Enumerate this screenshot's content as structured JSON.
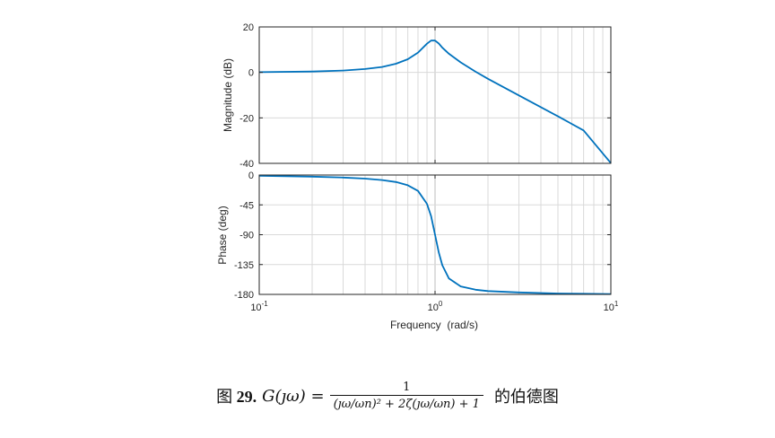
{
  "chart_data": [
    {
      "type": "line",
      "title": "",
      "xlabel": "",
      "ylabel": "Magnitude (dB)",
      "xscale": "log",
      "xlim": [
        0.1,
        10
      ],
      "ylim": [
        -40,
        20
      ],
      "yticks": [
        "20",
        "0",
        "-20",
        "-40"
      ],
      "grid": true,
      "series": [
        {
          "color": "#0072BD",
          "x": [
            0.1,
            0.2,
            0.3,
            0.4,
            0.5,
            0.6,
            0.7,
            0.8,
            0.9,
            0.95,
            1.0,
            1.05,
            1.1,
            1.2,
            1.4,
            1.7,
            2,
            3,
            5,
            7,
            10
          ],
          "y": [
            0.1,
            0.4,
            0.8,
            1.5,
            2.4,
            3.8,
            5.8,
            8.7,
            12.6,
            14,
            14,
            12.7,
            10.9,
            8.2,
            4.4,
            0.3,
            -2.8,
            -10.1,
            -19.3,
            -25.5,
            -39.9
          ]
        }
      ]
    },
    {
      "type": "line",
      "title": "",
      "xlabel": "Frequency  (rad/s)",
      "ylabel": "Phase (deg)",
      "xscale": "log",
      "xlim": [
        0.1,
        10
      ],
      "ylim": [
        -180,
        0
      ],
      "yticks": [
        "0",
        "-45",
        "-90",
        "-135",
        "-180"
      ],
      "xticks": [
        "10-1",
        "100",
        "101"
      ],
      "grid": true,
      "series": [
        {
          "color": "#0072BD",
          "x": [
            0.1,
            0.2,
            0.3,
            0.4,
            0.5,
            0.6,
            0.7,
            0.8,
            0.9,
            0.95,
            1.0,
            1.05,
            1.1,
            1.2,
            1.4,
            1.7,
            2,
            3,
            5,
            7,
            10
          ],
          "y": [
            -1.2,
            -2.4,
            -3.8,
            -5.4,
            -7.6,
            -10.6,
            -15.4,
            -24,
            -43.5,
            -62,
            -90,
            -117,
            -136,
            -156,
            -168,
            -173,
            -175,
            -177,
            -178.6,
            -179,
            -179.4
          ]
        }
      ]
    }
  ],
  "tick_labels": {
    "x": [
      {
        "base": "10",
        "exp": "-1"
      },
      {
        "base": "10",
        "exp": "0"
      },
      {
        "base": "10",
        "exp": "1"
      }
    ]
  },
  "caption": {
    "prefix_cn": "图",
    "number": "29.",
    "lhs": "G(ȷω) =",
    "numerator": "1",
    "denominator": "(ȷω/ωn)² + 2ζ(ȷω/ωn) + 1",
    "suffix_cn": "的伯德图"
  }
}
